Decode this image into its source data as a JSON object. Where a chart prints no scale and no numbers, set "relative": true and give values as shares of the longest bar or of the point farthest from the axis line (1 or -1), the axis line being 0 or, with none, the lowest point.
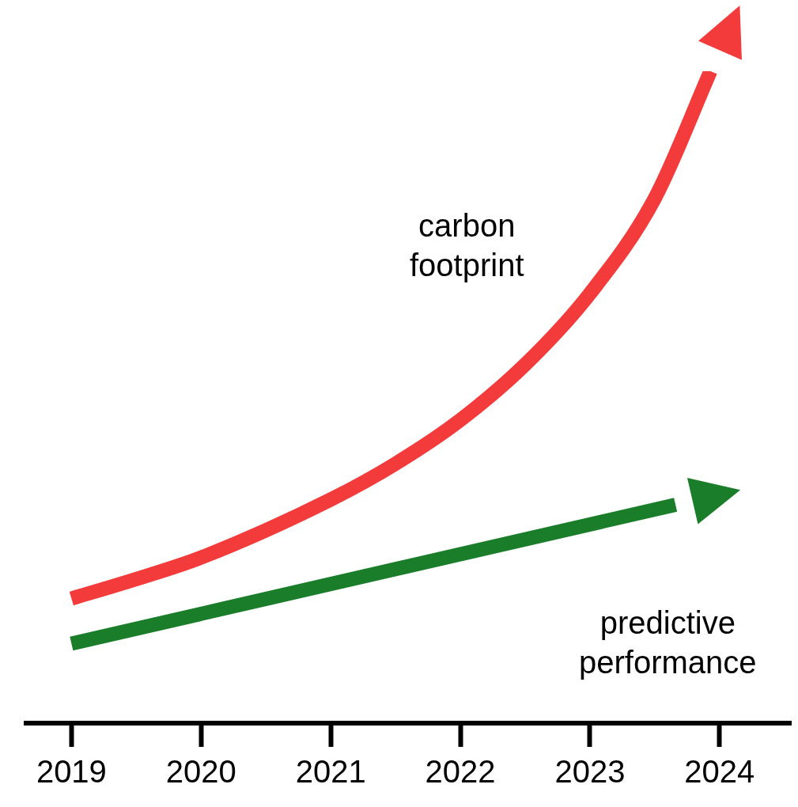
{
  "chart_data": {
    "type": "line",
    "relative": true,
    "x": [
      2019,
      2019.5,
      2020,
      2021,
      2021.5,
      2022,
      2022.5,
      2023,
      2023.5,
      2023.93
    ],
    "xlim": [
      2018.65,
      2024.55
    ],
    "xticks": [
      2019,
      2020,
      2021,
      2022,
      2023,
      2024
    ],
    "grid": false,
    "legend": false,
    "marker": "none",
    "line_style": "solid",
    "series": [
      {
        "name": "carbon footprint",
        "color": "#f43b3b",
        "values": [
          0.191,
          0.221,
          0.254,
          0.343,
          0.398,
          0.465,
          0.55,
          0.659,
          0.805,
          1
        ]
      },
      {
        "name": "predictive performance",
        "color": "#1a7d2a",
        "x": [
          2019,
          2023.66
        ],
        "values": [
          0.122,
          0.335
        ]
      }
    ]
  }
}
